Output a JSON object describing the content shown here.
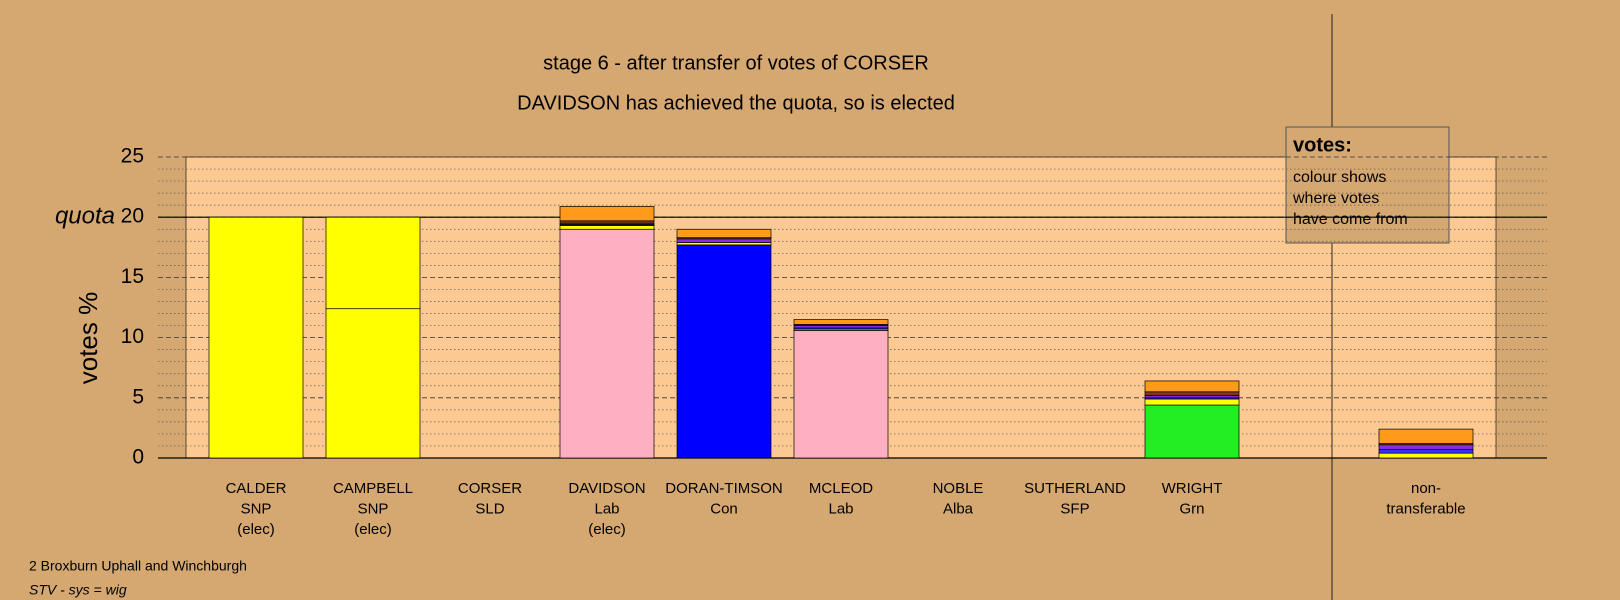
{
  "chart_data": {
    "type": "stacked-bar",
    "title": "stage 6 - after transfer of votes of CORSER",
    "subtitle": "DAVIDSON has achieved the quota, so is elected",
    "y_label": "votes %",
    "quota_label": "quota",
    "quota": 20,
    "categories": [
      [
        "CALDER",
        "SNP",
        "(elec)"
      ],
      [
        "CAMPBELL",
        "SNP",
        "(elec)"
      ],
      [
        "CORSER",
        "SLD"
      ],
      [
        "DAVIDSON",
        "Lab",
        "(elec)"
      ],
      [
        "DORAN-TIMSON",
        "Con"
      ],
      [
        "MCLEOD",
        "Lab"
      ],
      [
        "NOBLE",
        "Alba"
      ],
      [
        "SUTHERLAND",
        "SFP"
      ],
      [
        "WRIGHT",
        "Grn"
      ],
      [
        "non-",
        "transferable"
      ]
    ],
    "series": [
      {
        "color": "#ffb0c0",
        "values": [
          0,
          0,
          0,
          19.0,
          0,
          10.6,
          0,
          0,
          0,
          0
        ]
      },
      {
        "color": "#0000ff",
        "values": [
          0,
          0,
          0,
          0,
          17.7,
          0,
          0,
          0,
          0,
          0
        ]
      },
      {
        "color": "#22ee22",
        "values": [
          0,
          0,
          0,
          0,
          0,
          0,
          0,
          0,
          4.4,
          0
        ]
      },
      {
        "color": "#ffff00",
        "values": [
          20,
          12.4,
          0,
          0,
          0,
          0,
          0,
          0,
          0,
          0
        ]
      },
      {
        "color": "#ffff00",
        "values": [
          0,
          7.6,
          0,
          0.3,
          0.2,
          0.1,
          0,
          0,
          0.5,
          0.4
        ]
      },
      {
        "color": "#3030ff",
        "values": [
          0,
          0,
          0,
          0.1,
          0,
          0.1,
          0,
          0,
          0.1,
          0.3
        ]
      },
      {
        "color": "#8a2be2",
        "values": [
          0,
          0,
          0,
          0.1,
          0.3,
          0.2,
          0,
          0,
          0.2,
          0.4
        ]
      },
      {
        "color": "#7a3b1a",
        "values": [
          0,
          0,
          0,
          0.2,
          0.1,
          0.1,
          0,
          0,
          0.3,
          0.1
        ]
      },
      {
        "color": "#ff9a1a",
        "values": [
          0,
          0,
          0,
          1.2,
          0.7,
          0.4,
          0,
          0,
          0.9,
          1.2
        ]
      }
    ],
    "ylim": [
      0,
      25
    ],
    "yticks": [
      0,
      5,
      10,
      15,
      20,
      25
    ],
    "minor_yticks": [
      1,
      2,
      3,
      4,
      6,
      7,
      8,
      9,
      11,
      12,
      13,
      14,
      16,
      17,
      18,
      19,
      21,
      22,
      23,
      24
    ],
    "grid": true,
    "legend": {
      "title": "votes:",
      "lines": [
        "colour shows",
        "where votes",
        "have come from"
      ]
    },
    "footer": [
      "2 Broxburn Uphall and Winchburgh",
      "STV - sys = wig"
    ]
  }
}
